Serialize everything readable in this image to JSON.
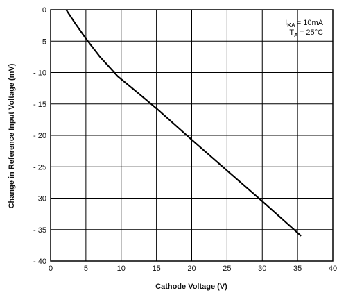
{
  "chart_data": {
    "type": "line",
    "title": "",
    "xlabel": "Cathode Voltage (V)",
    "ylabel": "Change in Reference Input Voltage (mV)",
    "xlim": [
      0,
      40
    ],
    "ylim": [
      -40,
      0
    ],
    "x_ticks": [
      0,
      5,
      10,
      15,
      20,
      25,
      30,
      35,
      40
    ],
    "y_ticks": [
      0,
      -5,
      -10,
      -15,
      -20,
      -25,
      -30,
      -35,
      -40
    ],
    "x_tick_labels": [
      "0",
      "5",
      "10",
      "15",
      "20",
      "25",
      "30",
      "35",
      "40"
    ],
    "y_tick_labels": [
      "0",
      "- 5",
      "- 10",
      "- 15",
      "- 20",
      "- 25",
      "- 30",
      "- 35",
      "- 40"
    ],
    "grid": true,
    "series": [
      {
        "color": "#000000",
        "x": [
          2.2,
          3.5,
          5.0,
          7.0,
          9.5,
          12.0,
          15.0,
          20.0,
          25.0,
          30.0,
          35.5
        ],
        "y": [
          0,
          -2.2,
          -4.6,
          -7.5,
          -10.6,
          -12.9,
          -15.7,
          -20.7,
          -25.6,
          -30.5,
          -36.0
        ]
      }
    ],
    "annotation": {
      "line1_main": "I",
      "line1_sub": "KA",
      "line1_rest": "= 10mA",
      "line2_main": "T",
      "line2_sub": "A",
      "line2_rest": "= 25°C"
    }
  }
}
